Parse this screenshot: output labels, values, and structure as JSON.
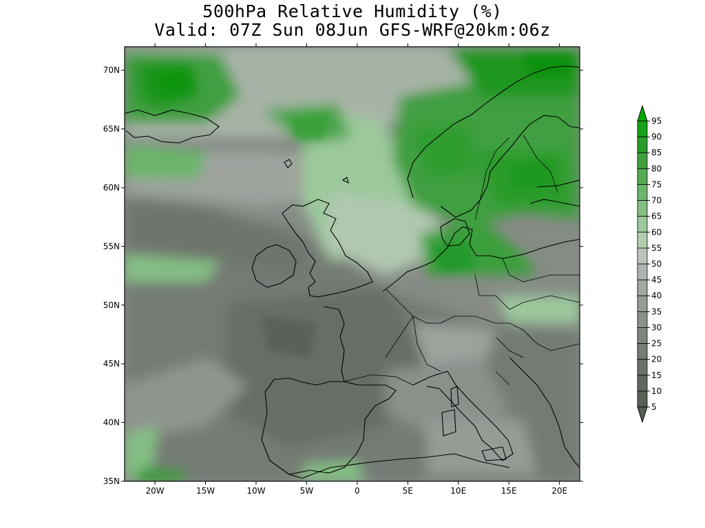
{
  "title": {
    "line1": "500hPa Relative Humidity (%)",
    "line2": "Valid: 07Z Sun 08Jun GFS-WRF@20km:06z"
  },
  "map": {
    "extent": {
      "lon_min": -23,
      "lon_max": 22,
      "lat_min": 35,
      "lat_max": 72
    },
    "lat_ticks": [
      {
        "value": 35,
        "label": "35N"
      },
      {
        "value": 40,
        "label": "40N"
      },
      {
        "value": 45,
        "label": "45N"
      },
      {
        "value": 50,
        "label": "50N"
      },
      {
        "value": 55,
        "label": "55N"
      },
      {
        "value": 60,
        "label": "60N"
      },
      {
        "value": 65,
        "label": "65N"
      },
      {
        "value": 70,
        "label": "70N"
      }
    ],
    "lon_ticks": [
      {
        "value": -20,
        "label": "20W"
      },
      {
        "value": -15,
        "label": "15W"
      },
      {
        "value": -10,
        "label": "10W"
      },
      {
        "value": -5,
        "label": "5W"
      },
      {
        "value": 0,
        "label": "0"
      },
      {
        "value": 5,
        "label": "5E"
      },
      {
        "value": 10,
        "label": "10E"
      },
      {
        "value": 15,
        "label": "15E"
      },
      {
        "value": 20,
        "label": "20E"
      }
    ]
  },
  "colorbar": {
    "levels": [
      {
        "label": "95",
        "color": "#00aa00"
      },
      {
        "label": "90",
        "color": "#16a216"
      },
      {
        "label": "85",
        "color": "#2a9c2a"
      },
      {
        "label": "80",
        "color": "#3fa03f"
      },
      {
        "label": "75",
        "color": "#55aa55"
      },
      {
        "label": "70",
        "color": "#6cb56c"
      },
      {
        "label": "65",
        "color": "#84bf84"
      },
      {
        "label": "60",
        "color": "#9cc99c"
      },
      {
        "label": "55",
        "color": "#b0d0b0"
      },
      {
        "label": "50",
        "color": "#bcc4bc"
      },
      {
        "label": "45",
        "color": "#b0b4b0"
      },
      {
        "label": "40",
        "color": "#a3a8a3"
      },
      {
        "label": "35",
        "color": "#979c97"
      },
      {
        "label": "30",
        "color": "#8b908b"
      },
      {
        "label": "25",
        "color": "#808580"
      },
      {
        "label": "20",
        "color": "#757b75"
      },
      {
        "label": "15",
        "color": "#6b716b"
      },
      {
        "label": "10",
        "color": "#62685f"
      },
      {
        "label": "5",
        "color": "#586056"
      }
    ]
  }
}
